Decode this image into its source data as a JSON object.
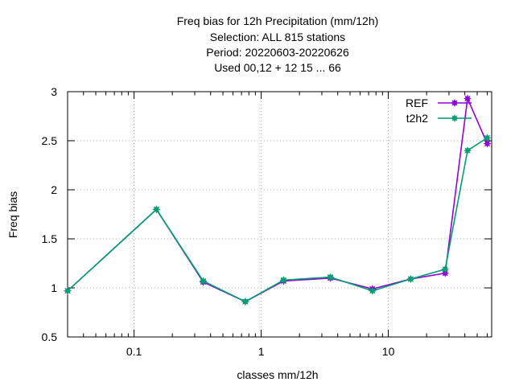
{
  "chart_data": {
    "type": "line",
    "title_lines": [
      "Freq bias  for 12h Precipitation (mm/12h)",
      "Selection: ALL    815 stations",
      "Period: 20220603-20220626",
      "Used  00,12  + 12 15 ... 66"
    ],
    "xlabel": "classes mm/12h",
    "ylabel": "Freq bias",
    "x_scale": "log",
    "xlim": [
      0.03,
      65
    ],
    "ylim": [
      0.5,
      3
    ],
    "x_ticks": [
      {
        "value": 0.1,
        "label": "0.1"
      },
      {
        "value": 1,
        "label": "1"
      },
      {
        "value": 10,
        "label": "10"
      }
    ],
    "y_ticks": [
      {
        "value": 0.5,
        "label": "0.5"
      },
      {
        "value": 1,
        "label": "1"
      },
      {
        "value": 1.5,
        "label": "1.5"
      },
      {
        "value": 2,
        "label": "2"
      },
      {
        "value": 2.5,
        "label": "2.5"
      },
      {
        "value": 3,
        "label": "3"
      }
    ],
    "grid": true,
    "legend_position": "top-right",
    "series": [
      {
        "name": "REF",
        "color": "#9400d3",
        "x": [
          0.03,
          0.15,
          0.35,
          0.75,
          1.5,
          3.5,
          7.5,
          15,
          28,
          42,
          60
        ],
        "y": [
          0.97,
          1.8,
          1.06,
          0.86,
          1.07,
          1.1,
          0.99,
          1.09,
          1.15,
          2.93,
          2.47
        ]
      },
      {
        "name": "t2h2",
        "color": "#009e73",
        "x": [
          0.03,
          0.15,
          0.35,
          0.75,
          1.5,
          3.5,
          7.5,
          15,
          28,
          42,
          60
        ],
        "y": [
          0.97,
          1.8,
          1.07,
          0.86,
          1.08,
          1.11,
          0.97,
          1.09,
          1.19,
          2.4,
          2.53
        ]
      }
    ]
  }
}
